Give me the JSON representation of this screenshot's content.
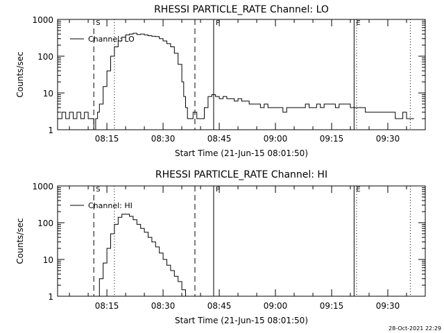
{
  "chart_data": [
    {
      "type": "line",
      "title": "RHESSI PARTICLE_RATE Channel: LO",
      "xlabel": "Start Time (21-Jun-15 08:01:50)",
      "ylabel": "Counts/sec",
      "y_scale": "log",
      "ylim": [
        1,
        1000
      ],
      "y_ticks": [
        "1",
        "10",
        "100",
        "1000"
      ],
      "xlim": [
        "08:01:50",
        "09:40:00"
      ],
      "x_ticks": [
        "08:15",
        "08:30",
        "08:45",
        "09:00",
        "09:15",
        "09:30"
      ],
      "grid": false,
      "legend": {
        "position": "top-left",
        "entries": [
          "Channel: LO"
        ]
      },
      "markers": [
        {
          "label": "S",
          "time": "08:11:30",
          "style": "dashed"
        },
        {
          "label": "",
          "time": "08:17:00",
          "style": "dotted"
        },
        {
          "label": "",
          "time": "08:38:30",
          "style": "dashed"
        },
        {
          "label": "P",
          "time": "08:43:30",
          "style": "solid"
        },
        {
          "label": "E",
          "time": "09:21:00",
          "style": "solid"
        },
        {
          "label": "",
          "time": "09:21:40",
          "style": "dotted"
        },
        {
          "label": "",
          "time": "09:36:00",
          "style": "dotted"
        }
      ],
      "series": [
        {
          "name": "Channel: LO",
          "x": [
            "08:01:50",
            "08:03:00",
            "08:04:00",
            "08:05:00",
            "08:06:00",
            "08:07:00",
            "08:08:00",
            "08:09:00",
            "08:10:00",
            "08:11:00",
            "08:11:30",
            "08:12:00",
            "08:12:30",
            "08:13:00",
            "08:14:00",
            "08:15:00",
            "08:16:00",
            "08:17:00",
            "08:18:00",
            "08:19:00",
            "08:20:00",
            "08:21:00",
            "08:22:00",
            "08:23:00",
            "08:24:00",
            "08:25:00",
            "08:26:00",
            "08:27:00",
            "08:28:00",
            "08:29:00",
            "08:30:00",
            "08:31:00",
            "08:32:00",
            "08:33:00",
            "08:34:00",
            "08:35:00",
            "08:35:30",
            "08:36:00",
            "08:36:30",
            "08:37:00",
            "08:38:00",
            "08:39:00",
            "08:40:00",
            "08:41:00",
            "08:42:00",
            "08:43:00",
            "08:44:00",
            "08:45:00",
            "08:46:00",
            "08:47:00",
            "08:48:00",
            "08:49:00",
            "08:50:00",
            "08:51:00",
            "08:52:00",
            "08:53:00",
            "08:54:00",
            "08:55:00",
            "08:56:00",
            "08:57:00",
            "08:58:00",
            "08:59:00",
            "09:00:00",
            "09:01:00",
            "09:02:00",
            "09:03:00",
            "09:04:00",
            "09:05:00",
            "09:06:00",
            "09:07:00",
            "09:08:00",
            "09:09:00",
            "09:10:00",
            "09:11:00",
            "09:12:00",
            "09:13:00",
            "09:14:00",
            "09:15:00",
            "09:16:00",
            "09:17:00",
            "09:18:00",
            "09:19:00",
            "09:20:00",
            "09:21:00",
            "09:22:00",
            "09:23:00",
            "09:24:00",
            "09:25:00",
            "09:26:00",
            "09:27:00",
            "09:28:00",
            "09:29:00",
            "09:30:00",
            "09:31:00",
            "09:32:00",
            "09:33:00",
            "09:34:00",
            "09:35:00",
            "09:36:00",
            "09:37:00"
          ],
          "values": [
            2,
            3,
            2,
            3,
            2,
            3,
            2,
            3,
            2,
            2,
            1,
            2,
            3,
            5,
            15,
            40,
            100,
            180,
            260,
            330,
            380,
            400,
            420,
            390,
            400,
            380,
            360,
            350,
            340,
            300,
            260,
            220,
            180,
            120,
            60,
            20,
            8,
            4,
            2,
            2,
            3,
            2,
            2,
            4,
            8,
            9,
            8,
            7,
            8,
            7,
            7,
            6,
            7,
            6,
            6,
            5,
            5,
            5,
            4,
            5,
            4,
            4,
            4,
            4,
            3,
            4,
            4,
            4,
            4,
            4,
            5,
            4,
            4,
            5,
            4,
            5,
            5,
            5,
            4,
            5,
            5,
            5,
            4,
            4,
            4,
            4,
            3,
            3,
            3,
            3,
            3,
            3,
            3,
            3,
            2,
            2,
            3,
            2,
            2,
            2
          ]
        }
      ]
    },
    {
      "type": "line",
      "title": "RHESSI PARTICLE_RATE Channel: HI",
      "xlabel": "Start Time (21-Jun-15 08:01:50)",
      "ylabel": "Counts/sec",
      "y_scale": "log",
      "ylim": [
        1,
        1000
      ],
      "y_ticks": [
        "1",
        "10",
        "100",
        "1000"
      ],
      "xlim": [
        "08:01:50",
        "09:40:00"
      ],
      "x_ticks": [
        "08:15",
        "08:30",
        "08:45",
        "09:00",
        "09:15",
        "09:30"
      ],
      "grid": false,
      "legend": {
        "position": "top-left",
        "entries": [
          "Channel: HI"
        ]
      },
      "markers": [
        {
          "label": "S",
          "time": "08:11:30",
          "style": "dashed"
        },
        {
          "label": "",
          "time": "08:17:00",
          "style": "dotted"
        },
        {
          "label": "",
          "time": "08:38:30",
          "style": "dashed"
        },
        {
          "label": "P",
          "time": "08:43:30",
          "style": "solid"
        },
        {
          "label": "E",
          "time": "09:21:00",
          "style": "solid"
        },
        {
          "label": "",
          "time": "09:21:40",
          "style": "dotted"
        },
        {
          "label": "",
          "time": "09:36:00",
          "style": "dotted"
        }
      ],
      "series": [
        {
          "name": "Channel: HI",
          "x": [
            "08:12:00",
            "08:13:00",
            "08:14:00",
            "08:15:00",
            "08:16:00",
            "08:17:00",
            "08:18:00",
            "08:19:00",
            "08:20:00",
            "08:21:00",
            "08:22:00",
            "08:23:00",
            "08:24:00",
            "08:25:00",
            "08:26:00",
            "08:27:00",
            "08:28:00",
            "08:29:00",
            "08:30:00",
            "08:31:00",
            "08:32:00",
            "08:33:00",
            "08:34:00",
            "08:35:00",
            "08:36:00"
          ],
          "values": [
            1,
            3,
            8,
            20,
            50,
            90,
            140,
            170,
            170,
            150,
            120,
            90,
            70,
            55,
            40,
            30,
            22,
            15,
            10,
            7,
            5,
            3.5,
            2.5,
            1.5,
            1
          ]
        }
      ]
    }
  ],
  "stamp": "28-Oct-2021 22:29"
}
